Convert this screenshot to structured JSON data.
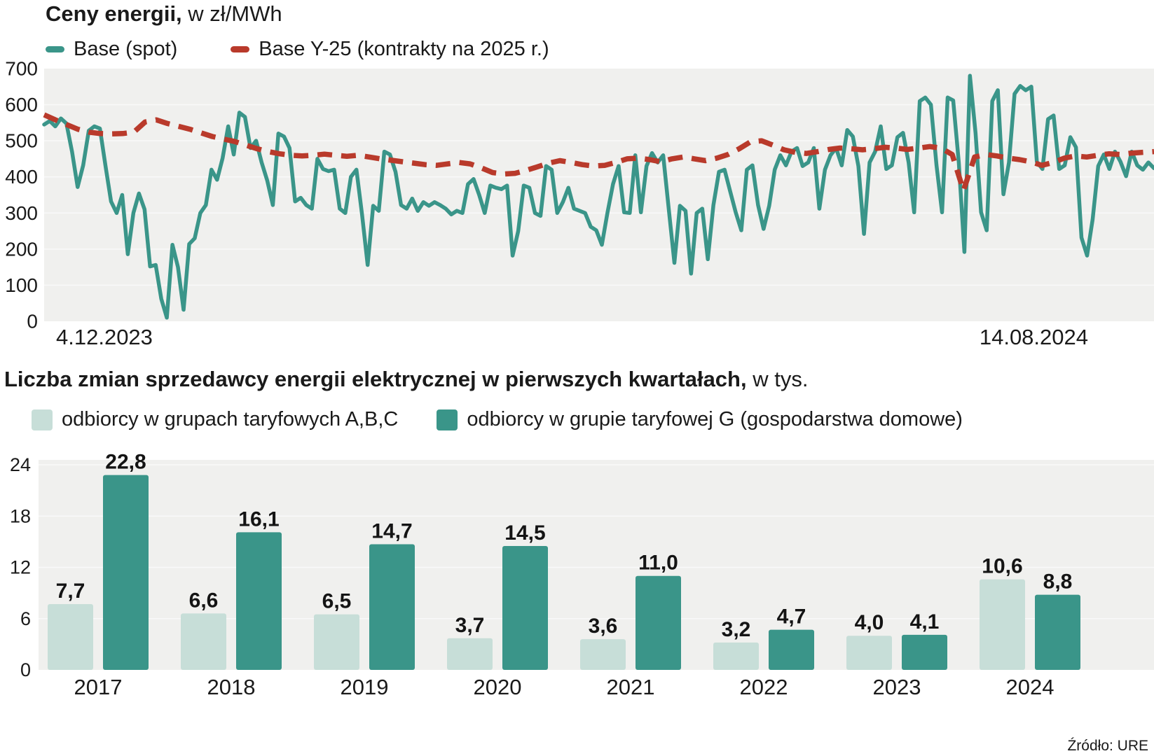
{
  "price_chart": {
    "title_bold": "Ceny energii,",
    "title_rest": " w zł/MWh"
  },
  "switch_chart": {
    "title_bold": "Liczba zmian sprzedawcy energii elektrycznej w pierwszych kwartałach,",
    "title_rest": " w tys."
  },
  "source": "Źródło: URE",
  "colors": {
    "plot_background": "#f0f0ee",
    "teal": "#3a9589",
    "light_teal": "#c7ded8",
    "red": "#b93a2b"
  },
  "chart_data": [
    {
      "type": "line",
      "title": "Ceny energii, w zł/MWh",
      "x_range": [
        "4.12.2023",
        "14.08.2024"
      ],
      "ylim": [
        0,
        700
      ],
      "y_ticks": [
        0,
        100,
        200,
        300,
        400,
        500,
        600,
        700
      ],
      "grid": true,
      "legend_position": "top",
      "series": [
        {
          "name": "Base (spot)",
          "color": "#3a9589",
          "style": "solid",
          "values": [
            545,
            555,
            540,
            562,
            548,
            470,
            372,
            432,
            528,
            540,
            534,
            430,
            332,
            300,
            350,
            186,
            300,
            354,
            310,
            152,
            156,
            62,
            10,
            212,
            150,
            32,
            214,
            230,
            300,
            322,
            420,
            392,
            452,
            540,
            462,
            578,
            566,
            480,
            500,
            440,
            390,
            322,
            520,
            512,
            480,
            332,
            342,
            322,
            312,
            450,
            422,
            416,
            420,
            312,
            300,
            400,
            420,
            296,
            156,
            320,
            306,
            470,
            462,
            414,
            322,
            312,
            340,
            306,
            330,
            320,
            330,
            322,
            312,
            296,
            306,
            300,
            380,
            394,
            350,
            300,
            376,
            370,
            366,
            376,
            182,
            250,
            376,
            370,
            300,
            292,
            430,
            420,
            300,
            330,
            370,
            312,
            306,
            300,
            262,
            252,
            212,
            300,
            380,
            430,
            302,
            300,
            460,
            302,
            430,
            466,
            440,
            460,
            310,
            162,
            320,
            306,
            132,
            300,
            312,
            172,
            322,
            414,
            420,
            360,
            302,
            252,
            420,
            432,
            322,
            256,
            320,
            420,
            460,
            432,
            470,
            480,
            430,
            440,
            480,
            312,
            420,
            460,
            480,
            432,
            530,
            512,
            430,
            242,
            440,
            470,
            540,
            422,
            432,
            510,
            522,
            440,
            302,
            610,
            620,
            600,
            432,
            302,
            620,
            612,
            440,
            192,
            680,
            522,
            302,
            252,
            610,
            640,
            352,
            440,
            630,
            652,
            640,
            650,
            442,
            422,
            560,
            570,
            422,
            432,
            510,
            482,
            232,
            182,
            282,
            430,
            462,
            422,
            470,
            442,
            402,
            470,
            432,
            420,
            440,
            424
          ]
        },
        {
          "name": "Base Y-25 (kontrakty na 2025 r.)",
          "color": "#b93a2b",
          "style": "dashed",
          "values": [
            572,
            558,
            545,
            532,
            524,
            520,
            519,
            520,
            524,
            552,
            558,
            548,
            540,
            532,
            522,
            512,
            505,
            498,
            488,
            478,
            470,
            464,
            460,
            458,
            460,
            463,
            460,
            457,
            460,
            455,
            450,
            446,
            442,
            438,
            434,
            432,
            436,
            440,
            436,
            425,
            412,
            408,
            410,
            418,
            428,
            438,
            445,
            440,
            434,
            430,
            432,
            440,
            450,
            452,
            448,
            442,
            450,
            455,
            450,
            445,
            452,
            462,
            478,
            497,
            500,
            488,
            475,
            468,
            465,
            470,
            476,
            480,
            478,
            475,
            478,
            482,
            480,
            476,
            480,
            484,
            480,
            462,
            362,
            455,
            462,
            458,
            452,
            448,
            442,
            432,
            440,
            452,
            458,
            455,
            460,
            464,
            462,
            466,
            468,
            470
          ]
        }
      ]
    },
    {
      "type": "bar",
      "title": "Liczba zmian sprzedawcy energii elektrycznej w pierwszych kwartałach, w tys.",
      "categories": [
        "2017",
        "2018",
        "2019",
        "2020",
        "2021",
        "2022",
        "2023",
        "2024"
      ],
      "ylim": [
        0,
        24
      ],
      "y_ticks": [
        0,
        6,
        12,
        18,
        24
      ],
      "legend_position": "top",
      "series": [
        {
          "name": "odbiorcy w grupach taryfowych A,B,C",
          "color": "#c7ded8",
          "values": [
            7.7,
            6.6,
            6.5,
            3.7,
            3.6,
            3.2,
            4.0,
            10.6
          ]
        },
        {
          "name": "odbiorcy w grupie taryfowej G (gospodarstwa domowe)",
          "color": "#3a9589",
          "values": [
            22.8,
            16.1,
            14.7,
            14.5,
            11.0,
            4.7,
            4.1,
            8.8
          ]
        }
      ]
    }
  ]
}
